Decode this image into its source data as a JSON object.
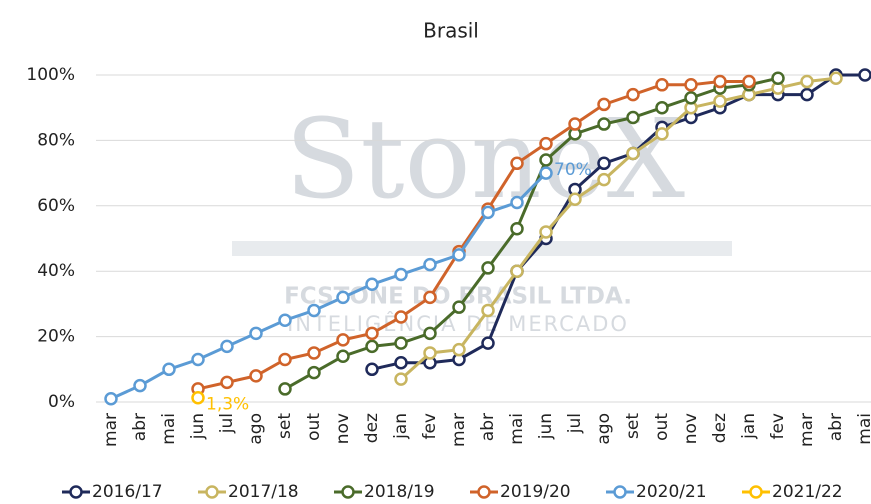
{
  "chart_data": {
    "type": "line",
    "title": "Brasil",
    "watermark": [
      "StoneX",
      "FCSTONE DO BRASIL LTDA.",
      "INTELIGÊNCIA DE MERCADO"
    ],
    "categories": [
      "mar",
      "abr",
      "mai",
      "jun",
      "jul",
      "ago",
      "set",
      "out",
      "nov",
      "dez",
      "jan",
      "fev",
      "mar",
      "abr",
      "mai",
      "jun",
      "jul",
      "ago",
      "set",
      "out",
      "nov",
      "dez",
      "jan",
      "fev",
      "mar",
      "abr",
      "mai"
    ],
    "ylim": [
      0,
      100
    ],
    "yticks": [
      {
        "value": 0,
        "label": "0%"
      },
      {
        "value": 20,
        "label": "20%"
      },
      {
        "value": 40,
        "label": "40%"
      },
      {
        "value": 60,
        "label": "60%"
      },
      {
        "value": 80,
        "label": "80%"
      },
      {
        "value": 100,
        "label": "100%"
      }
    ],
    "grid": true,
    "legend": "bottom",
    "series": [
      {
        "name": "2016/17",
        "color": "#1f2a5a",
        "values": [
          null,
          null,
          null,
          null,
          null,
          null,
          null,
          null,
          null,
          10,
          12,
          12,
          13,
          18,
          40,
          50,
          65,
          73,
          76,
          84,
          87,
          90,
          94,
          94,
          94,
          100,
          100
        ]
      },
      {
        "name": "2017/18",
        "color": "#c8b560",
        "values": [
          null,
          null,
          null,
          null,
          null,
          null,
          null,
          null,
          null,
          null,
          7,
          15,
          16,
          28,
          40,
          52,
          62,
          68,
          76,
          82,
          90,
          92,
          94,
          96,
          98,
          99,
          null
        ]
      },
      {
        "name": "2018/19",
        "color": "#4a6b2a",
        "values": [
          null,
          null,
          null,
          null,
          null,
          null,
          4,
          9,
          14,
          17,
          18,
          21,
          29,
          41,
          53,
          74,
          82,
          85,
          87,
          90,
          93,
          96,
          97,
          99,
          null,
          null,
          null
        ]
      },
      {
        "name": "2019/20",
        "color": "#d0632a",
        "values": [
          null,
          null,
          null,
          4,
          6,
          8,
          13,
          15,
          19,
          21,
          26,
          32,
          46,
          59,
          73,
          79,
          85,
          91,
          94,
          97,
          97,
          98,
          98,
          null,
          null,
          null,
          null
        ]
      },
      {
        "name": "2020/21",
        "color": "#5b9bd5",
        "values": [
          1,
          5,
          10,
          13,
          17,
          21,
          25,
          28,
          32,
          36,
          39,
          42,
          45,
          58,
          61,
          70,
          null,
          null,
          null,
          null,
          null,
          null,
          null,
          null,
          null,
          null,
          null
        ],
        "value_labels": [
          null,
          null,
          null,
          null,
          null,
          null,
          null,
          null,
          null,
          null,
          null,
          null,
          null,
          null,
          null,
          "70%",
          null,
          null,
          null,
          null,
          null,
          null,
          null,
          null,
          null,
          null,
          null
        ]
      },
      {
        "name": "2021/22",
        "color": "#ffc000",
        "values": [
          null,
          null,
          null,
          1.3,
          null,
          null,
          null,
          null,
          null,
          null,
          null,
          null,
          null,
          null,
          null,
          null,
          null,
          null,
          null,
          null,
          null,
          null,
          null,
          null,
          null,
          null,
          null
        ],
        "value_labels": [
          null,
          null,
          null,
          "1,3%",
          null,
          null,
          null,
          null,
          null,
          null,
          null,
          null,
          null,
          null,
          null,
          null,
          null,
          null,
          null,
          null,
          null,
          null,
          null,
          null,
          null,
          null,
          null
        ]
      }
    ]
  }
}
